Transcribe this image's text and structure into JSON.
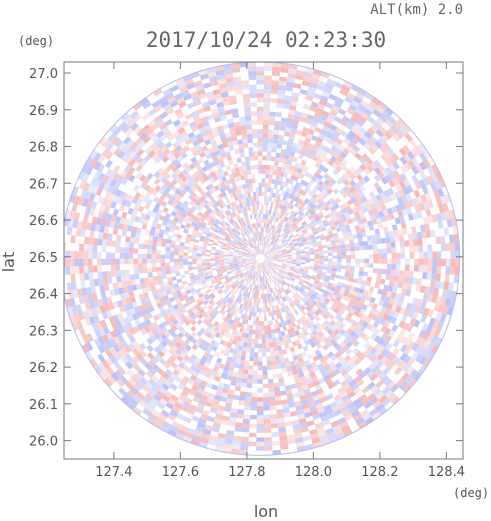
{
  "chart_data": {
    "type": "heatmap",
    "title": "2017/10/24 02:23:30",
    "subtitle": "ALT(km) 2.0",
    "xlabel": "lon",
    "ylabel": "lat",
    "xunit": "(deg)",
    "yunit": "(deg)",
    "xlim": [
      127.25,
      128.45
    ],
    "ylim": [
      25.95,
      27.03
    ],
    "xticks": [
      127.4,
      127.6,
      127.8,
      128.0,
      128.2,
      128.4
    ],
    "xticklabels": [
      "127.4",
      "127.6",
      "127.8",
      "128.0",
      "128.2",
      "128.4"
    ],
    "yticks": [
      26.0,
      26.1,
      26.2,
      26.3,
      26.4,
      26.5,
      26.6,
      26.7,
      26.8,
      26.9,
      27.0
    ],
    "yticklabels": [
      "26.0",
      "26.1",
      "26.2",
      "26.3",
      "26.4",
      "26.5",
      "26.6",
      "26.7",
      "26.8",
      "26.9",
      "27.0"
    ],
    "radar_center": {
      "lon": 127.84,
      "lat": 26.495
    },
    "radar_range": {
      "dlon": 0.6,
      "dlat": 0.535
    },
    "colormap": {
      "positive": "#f4a4a4",
      "negative": "#aab0f4",
      "zero": "#ffffff"
    },
    "grid": false,
    "legend": "none"
  }
}
